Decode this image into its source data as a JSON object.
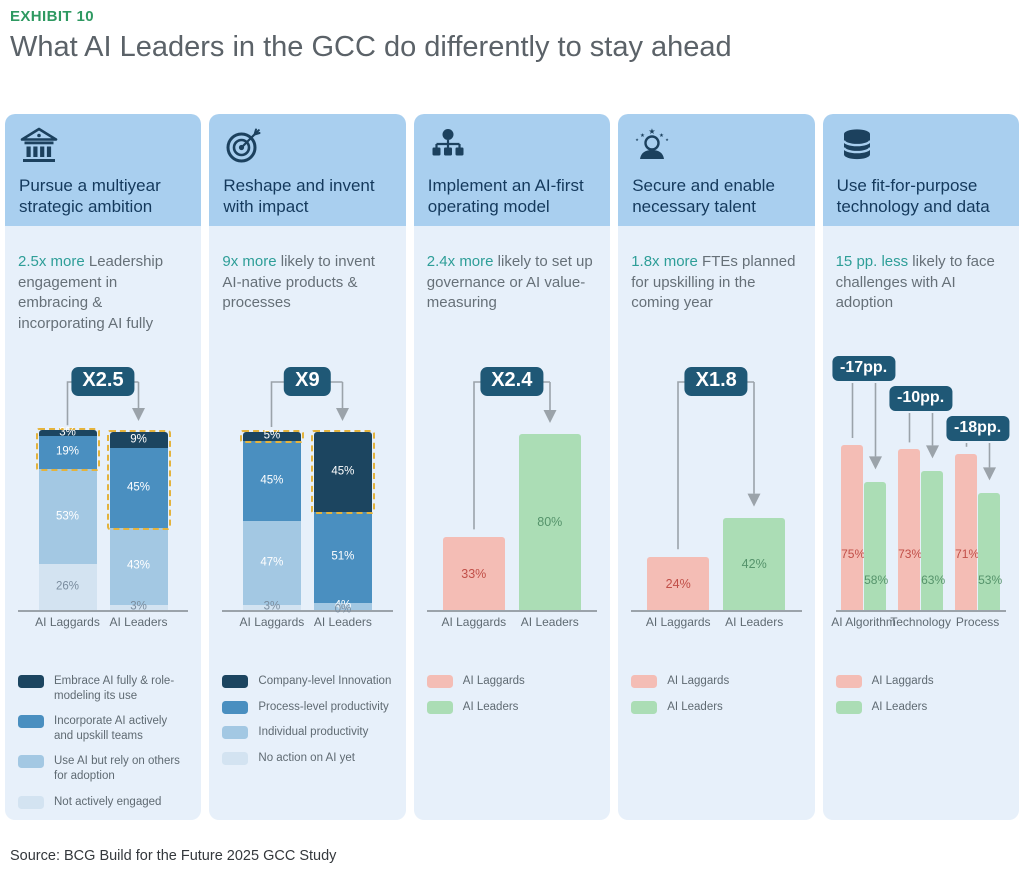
{
  "page": {
    "eyebrow": "EXHIBIT 10",
    "title": "What AI Leaders in the GCC do differently to stay ahead",
    "source": "Source: BCG Build for the Future 2025 GCC Study"
  },
  "colors": {
    "eyebrow_green": "#2E9961",
    "title_gray": "#5B6268",
    "panel_head_bg": "#A9CFEF",
    "panel_body_bg": "#E7F0FA",
    "headline_navy": "#14395C",
    "stat_teal": "#2E9E98",
    "stat_gray": "#667078",
    "navy": "#1C4560",
    "blue": "#4A8FC0",
    "lightblue": "#A3C8E3",
    "palest": "#D3E3F1",
    "pink": "#F4BDB5",
    "green": "#ABDDB5",
    "pink_text": "#C14F48",
    "green_text": "#55936B",
    "badge_bg": "#1F5876",
    "highlight_dash": "#E4B33C",
    "axis": "#9BA3AA",
    "axis_label": "#5F6A72",
    "pale_label": "#7A8C9E",
    "icon_navy": "#1C415E"
  },
  "panels": [
    {
      "icon": "bank-icon",
      "headline": "Pursue a multiyear strategic ambition",
      "stat_highlight": "2.5x more",
      "stat_rest": " Leadership engagement in embracing & incorporating AI fully",
      "legend": [
        {
          "color": "navy",
          "label": "Embrace AI fully & role-modeling its use"
        },
        {
          "color": "blue",
          "label": "Incorporate AI actively and upskill teams"
        },
        {
          "color": "lightblue",
          "label": "Use AI but rely on others for adoption"
        },
        {
          "color": "palest",
          "label": "Not actively engaged"
        }
      ]
    },
    {
      "icon": "target-icon",
      "headline": "Reshape and invent with impact",
      "stat_highlight": "9x more",
      "stat_rest": " likely to invent AI-native products & processes",
      "legend": [
        {
          "color": "navy",
          "label": "Company-level Innovation"
        },
        {
          "color": "blue",
          "label": "Process-level productivity"
        },
        {
          "color": "lightblue",
          "label": "Individual productivity"
        },
        {
          "color": "palest",
          "label": "No action on AI yet"
        }
      ]
    },
    {
      "icon": "org-chart-icon",
      "headline": "Implement an AI-first operating model",
      "stat_highlight": "2.4x more",
      "stat_rest": " likely to set up governance or AI value-measuring",
      "legend": [
        {
          "color": "pink",
          "label": "AI Laggards"
        },
        {
          "color": "green",
          "label": "AI Leaders"
        }
      ]
    },
    {
      "icon": "talent-stars-icon",
      "headline": "Secure and enable necessary talent",
      "stat_highlight": "1.8x more",
      "stat_rest": " FTEs planned for upskilling in the coming year",
      "legend": [
        {
          "color": "pink",
          "label": "AI Laggards"
        },
        {
          "color": "green",
          "label": "AI Leaders"
        }
      ]
    },
    {
      "icon": "database-icon",
      "headline": "Use fit-for-purpose technology and data",
      "stat_highlight": "15 pp. less",
      "stat_rest": " likely to face challenges with AI adoption",
      "legend": [
        {
          "color": "pink",
          "label": "AI Laggards"
        },
        {
          "color": "green",
          "label": "AI Leaders"
        }
      ]
    }
  ],
  "chart_data": [
    {
      "type": "bar",
      "subtype": "stacked",
      "unit": "%",
      "ylim": [
        0,
        100
      ],
      "categories": [
        "AI Laggards",
        "AI Leaders"
      ],
      "series": [
        {
          "name": "Embrace AI fully & role-modeling its use",
          "color": "navy",
          "values": [
            3,
            9
          ]
        },
        {
          "name": "Incorporate AI actively and upskill teams",
          "color": "blue",
          "values": [
            19,
            45
          ]
        },
        {
          "name": "Use AI but rely on others for adoption",
          "color": "lightblue",
          "values": [
            53,
            43
          ]
        },
        {
          "name": "Not actively engaged",
          "color": "palest",
          "values": [
            26,
            3
          ]
        }
      ],
      "badge": "X2.5",
      "highlight_segments_per_bar": [
        2,
        2
      ]
    },
    {
      "type": "bar",
      "subtype": "stacked",
      "unit": "%",
      "ylim": [
        0,
        100
      ],
      "categories": [
        "AI Laggards",
        "AI Leaders"
      ],
      "series": [
        {
          "name": "Company-level Innovation",
          "color": "navy",
          "values": [
            5,
            45
          ]
        },
        {
          "name": "Process-level productivity",
          "color": "blue",
          "values": [
            45,
            51
          ]
        },
        {
          "name": "Individual productivity",
          "color": "lightblue",
          "values": [
            47,
            4
          ]
        },
        {
          "name": "No action on AI yet",
          "color": "palest",
          "values": [
            3,
            0
          ]
        }
      ],
      "badge": "X9",
      "highlight_segments_per_bar": [
        1,
        1
      ]
    },
    {
      "type": "bar",
      "subtype": "simple",
      "unit": "%",
      "ylim": [
        0,
        100
      ],
      "categories": [
        "AI Laggards",
        "AI Leaders"
      ],
      "values": [
        33,
        80
      ],
      "bar_colors": [
        "pink",
        "green"
      ],
      "label_colors": [
        "pink_text",
        "green_text"
      ],
      "badge": "X2.4"
    },
    {
      "type": "bar",
      "subtype": "simple",
      "unit": "%",
      "ylim": [
        0,
        100
      ],
      "categories": [
        "AI Laggards",
        "AI Leaders"
      ],
      "values": [
        24,
        42
      ],
      "bar_colors": [
        "pink",
        "green"
      ],
      "label_colors": [
        "pink_text",
        "green_text"
      ],
      "badge": "X1.8"
    },
    {
      "type": "bar",
      "subtype": "grouped",
      "unit": "%",
      "ylim": [
        0,
        100
      ],
      "categories": [
        "AI Algorithm",
        "Technology",
        "Process"
      ],
      "series": [
        {
          "name": "AI Laggards",
          "color": "pink",
          "label_color": "pink_text",
          "values": [
            75,
            73,
            71
          ]
        },
        {
          "name": "AI Leaders",
          "color": "green",
          "label_color": "green_text",
          "values": [
            58,
            63,
            53
          ]
        }
      ],
      "badges": [
        "-17pp.",
        "-10pp.",
        "-18pp."
      ]
    }
  ]
}
